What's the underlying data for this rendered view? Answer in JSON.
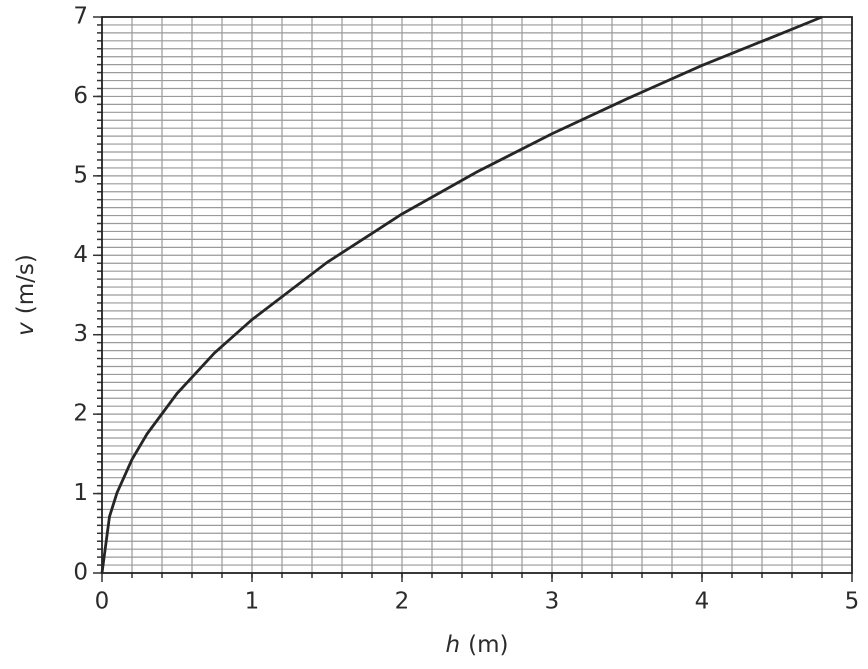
{
  "chart_data": {
    "type": "line",
    "xlabel": {
      "symbol": "h",
      "unit": "(m)"
    },
    "ylabel": {
      "symbol": "v",
      "unit": "(m/s)"
    },
    "x": [
      0,
      0.05,
      0.1,
      0.2,
      0.3,
      0.5,
      0.75,
      1,
      1.5,
      2,
      2.5,
      3,
      3.5,
      4,
      4.5,
      4.8
    ],
    "series": [
      {
        "color": "#262626",
        "values": [
          0,
          0.71,
          1.01,
          1.43,
          1.75,
          2.26,
          2.77,
          3.19,
          3.91,
          4.52,
          5.05,
          5.53,
          5.97,
          6.39,
          6.77,
          7.0
        ]
      }
    ],
    "xlim": [
      0,
      5
    ],
    "xticks": [
      0,
      1,
      2,
      3,
      4,
      5
    ],
    "ylim": [
      0,
      7
    ],
    "yticks": [
      0,
      1,
      2,
      3,
      4,
      5,
      6,
      7
    ],
    "grid": true,
    "xminor": 0.2,
    "yminor": 0.1
  }
}
